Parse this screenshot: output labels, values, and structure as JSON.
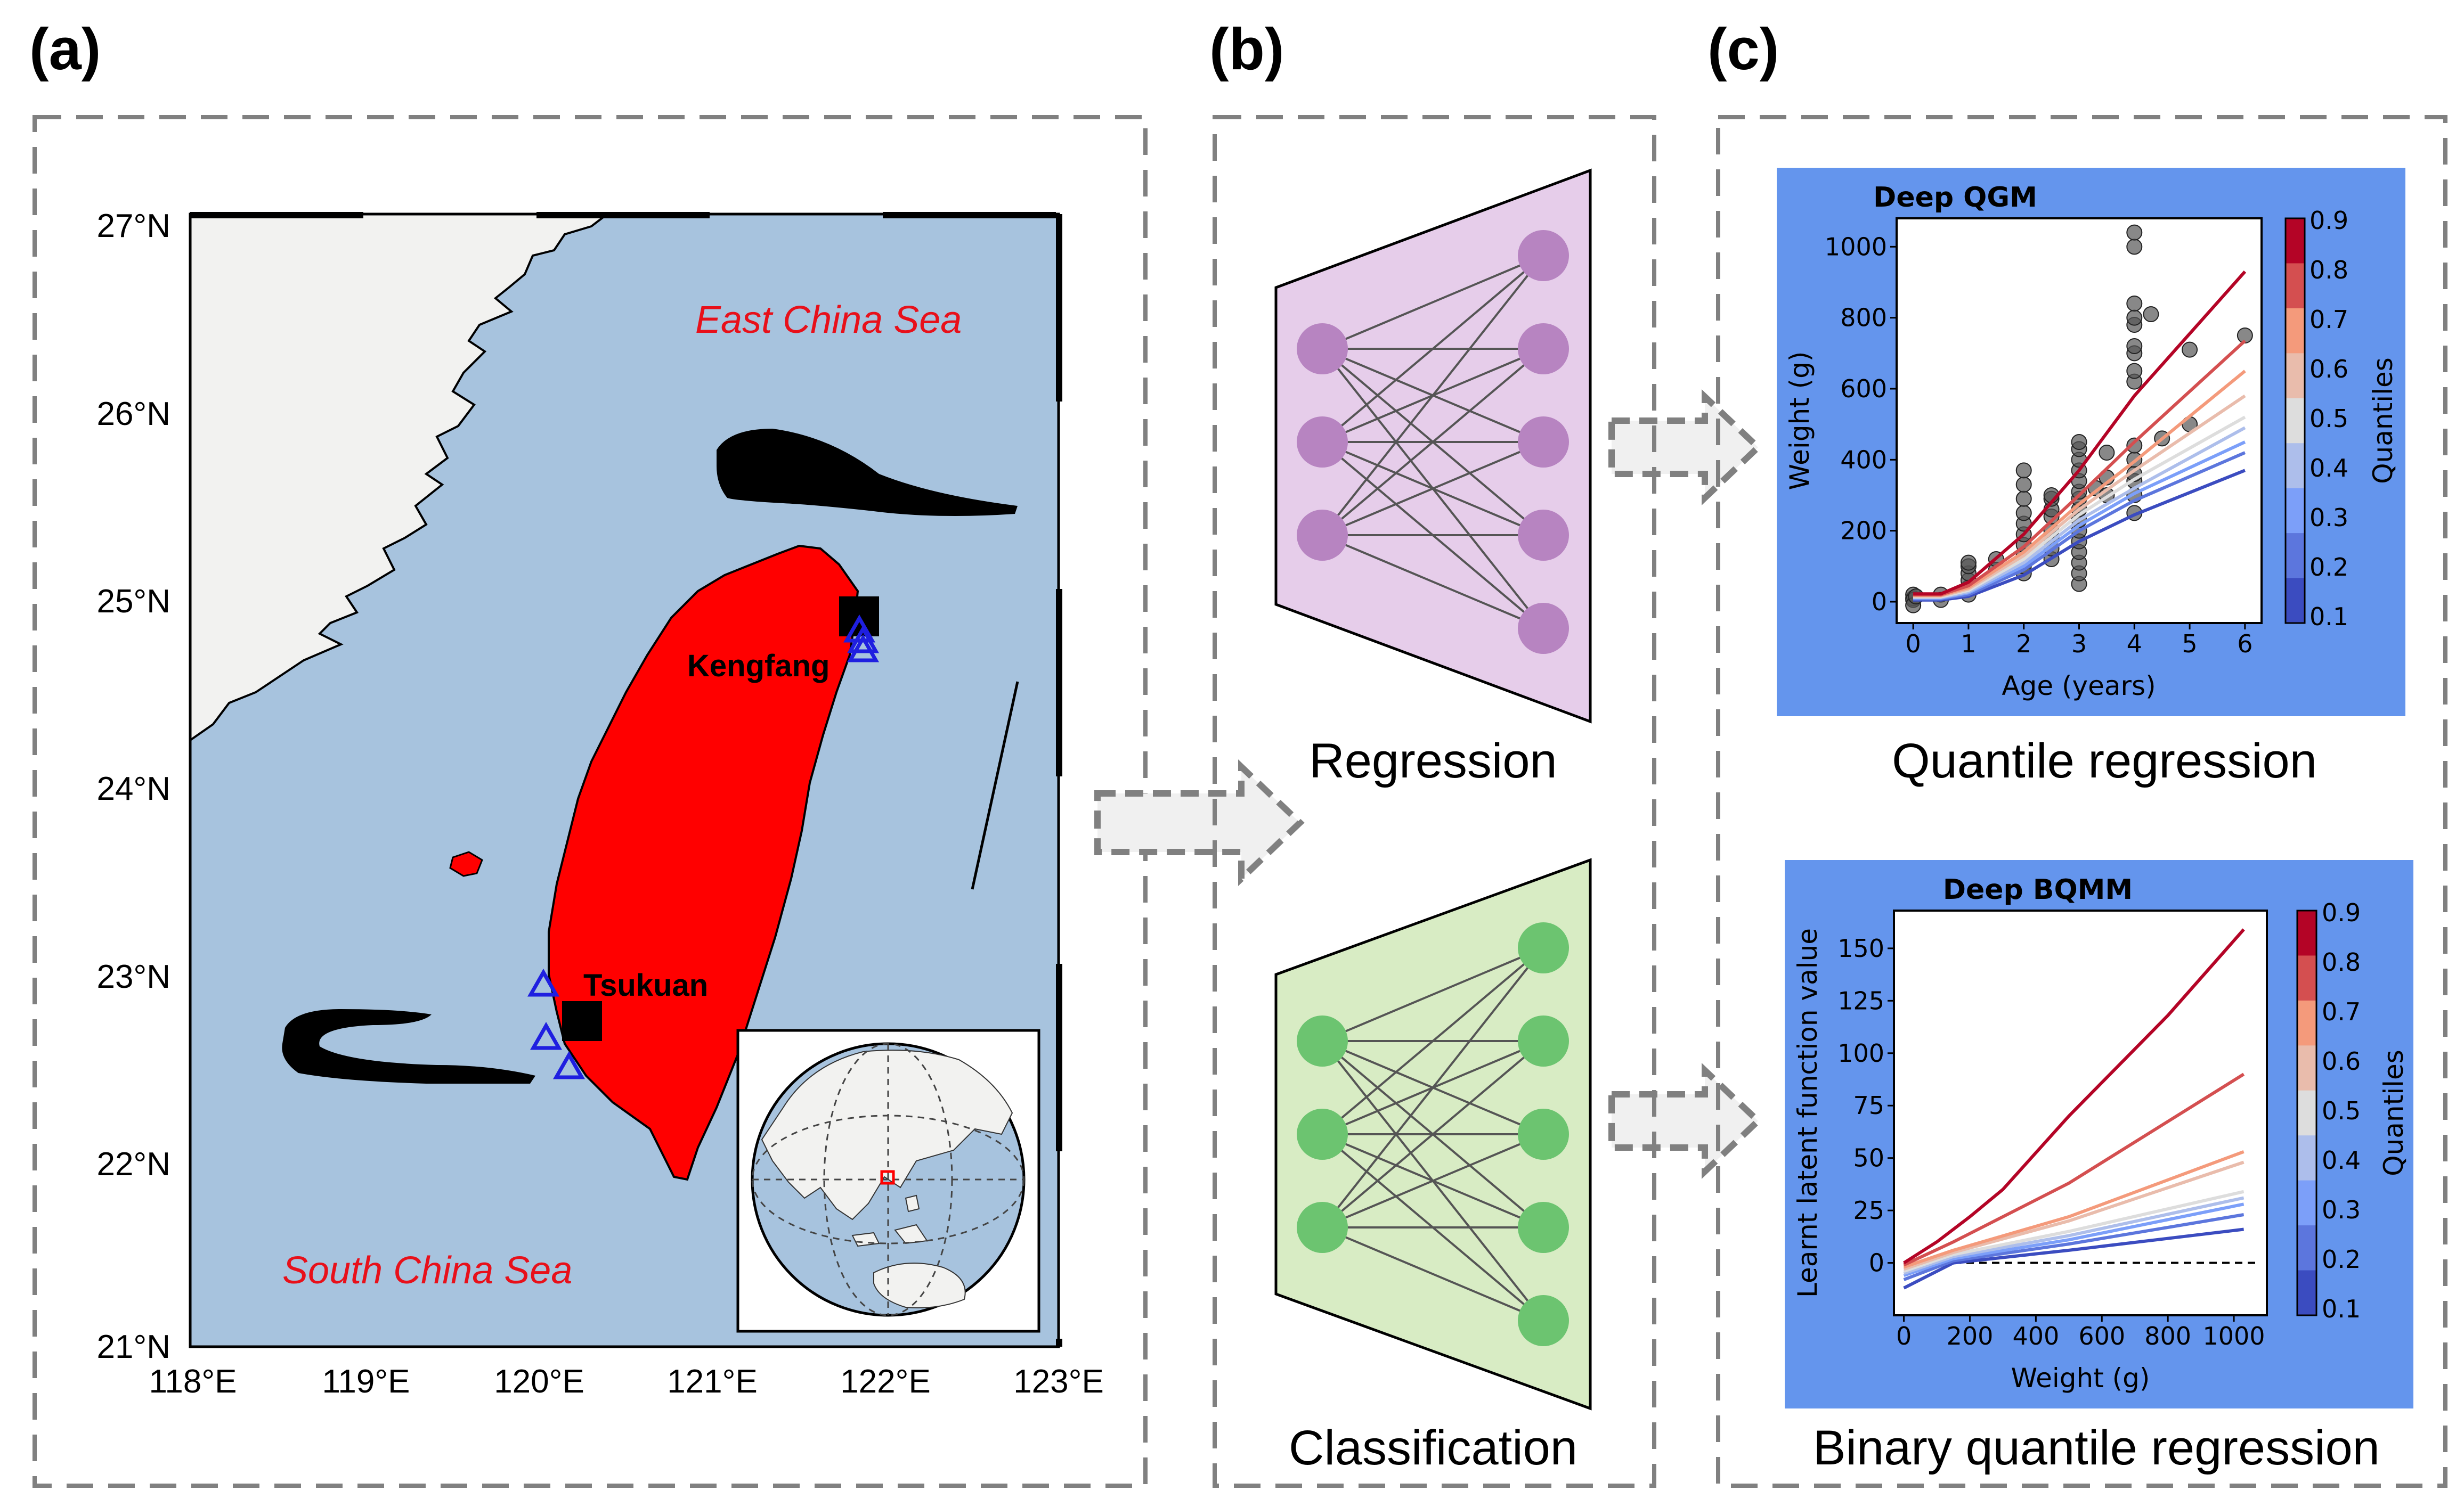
{
  "panels": {
    "a": {
      "label": "(a)",
      "lat_ticks": [
        "27°N",
        "26°N",
        "25°N",
        "24°N",
        "23°N",
        "22°N",
        "21°N"
      ],
      "lon_ticks": [
        "118°E",
        "119°E",
        "120°E",
        "121°E",
        "122°E",
        "123°E"
      ],
      "sea_labels": [
        "East China Sea",
        "South China Sea"
      ],
      "sites": [
        "Kengfang",
        "Tsukuan"
      ],
      "colors": {
        "ocean": "#a7c3de",
        "land": "#f2f2f0",
        "taiwan": "#ff0000",
        "fishing_ground": "#000000",
        "station": "#1f1fe0"
      }
    },
    "b": {
      "label": "(b)",
      "regression_caption": "Regression",
      "classification_caption": "Classification",
      "colors": {
        "regression_fill": "#e6cdea",
        "regression_node": "#b784c1",
        "classification_fill": "#d8ecc4",
        "classification_node": "#6cc470"
      }
    },
    "c": {
      "label": "(c)",
      "background_color": "#6495ed",
      "colorbar_label": "Quantiles",
      "colorbar_ticks": [
        "0.9",
        "0.8",
        "0.7",
        "0.6",
        "0.5",
        "0.4",
        "0.3",
        "0.2",
        "0.1"
      ],
      "top_caption": "Quantile regression",
      "bottom_caption": "Binary quantile regression"
    }
  },
  "chart_data": [
    {
      "type": "line",
      "title": "Deep QGM",
      "xlabel": "Age (years)",
      "ylabel": "Weight (g)",
      "x_ticks": [
        "0",
        "1",
        "2",
        "3",
        "4",
        "5",
        "6"
      ],
      "y_ticks": [
        "0",
        "200",
        "400",
        "600",
        "800",
        "1000"
      ],
      "xlim": [
        -0.3,
        6.3
      ],
      "ylim": [
        -60,
        1080
      ],
      "quantiles": [
        0.1,
        0.2,
        0.3,
        0.4,
        0.5,
        0.6,
        0.7,
        0.8,
        0.9
      ],
      "series": [
        {
          "quantile": 0.1,
          "points": [
            [
              0,
              5
            ],
            [
              0.5,
              5
            ],
            [
              1,
              15
            ],
            [
              2,
              75
            ],
            [
              3,
              170
            ],
            [
              4,
              245
            ],
            [
              6,
              370
            ]
          ]
        },
        {
          "quantile": 0.2,
          "points": [
            [
              0,
              8
            ],
            [
              0.5,
              8
            ],
            [
              1,
              20
            ],
            [
              2,
              90
            ],
            [
              3,
              200
            ],
            [
              4,
              285
            ],
            [
              6,
              420
            ]
          ]
        },
        {
          "quantile": 0.3,
          "points": [
            [
              0,
              10
            ],
            [
              0.5,
              10
            ],
            [
              1,
              25
            ],
            [
              2,
              100
            ],
            [
              3,
              215
            ],
            [
              4,
              305
            ],
            [
              6,
              450
            ]
          ]
        },
        {
          "quantile": 0.4,
          "points": [
            [
              0,
              12
            ],
            [
              0.5,
              12
            ],
            [
              1,
              28
            ],
            [
              2,
              110
            ],
            [
              3,
              230
            ],
            [
              4,
              320
            ],
            [
              6,
              490
            ]
          ]
        },
        {
          "quantile": 0.5,
          "points": [
            [
              0,
              14
            ],
            [
              0.5,
              14
            ],
            [
              1,
              32
            ],
            [
              2,
              120
            ],
            [
              3,
              245
            ],
            [
              4,
              345
            ],
            [
              6,
              520
            ]
          ]
        },
        {
          "quantile": 0.6,
          "points": [
            [
              0,
              16
            ],
            [
              0.5,
              16
            ],
            [
              1,
              36
            ],
            [
              2,
              130
            ],
            [
              3,
              260
            ],
            [
              4,
              370
            ],
            [
              6,
              580
            ]
          ]
        },
        {
          "quantile": 0.7,
          "points": [
            [
              0,
              18
            ],
            [
              0.5,
              18
            ],
            [
              1,
              40
            ],
            [
              2,
              140
            ],
            [
              3,
              275
            ],
            [
              4,
              395
            ],
            [
              6,
              650
            ]
          ]
        },
        {
          "quantile": 0.8,
          "points": [
            [
              0,
              20
            ],
            [
              0.5,
              20
            ],
            [
              1,
              45
            ],
            [
              2,
              155
            ],
            [
              3,
              300
            ],
            [
              4,
              450
            ],
            [
              6,
              735
            ]
          ]
        },
        {
          "quantile": 0.9,
          "points": [
            [
              0,
              22
            ],
            [
              0.5,
              22
            ],
            [
              1,
              55
            ],
            [
              2,
              190
            ],
            [
              3,
              370
            ],
            [
              4,
              580
            ],
            [
              6,
              930
            ]
          ]
        }
      ],
      "scatter": [
        [
          0,
          10
        ],
        [
          0,
          20
        ],
        [
          0,
          5
        ],
        [
          0,
          -10
        ],
        [
          0.05,
          15
        ],
        [
          0.5,
          20
        ],
        [
          0.5,
          5
        ],
        [
          1,
          20
        ],
        [
          1,
          40
        ],
        [
          1,
          60
        ],
        [
          1,
          80
        ],
        [
          1,
          100
        ],
        [
          1,
          110
        ],
        [
          1.5,
          90
        ],
        [
          1.5,
          120
        ],
        [
          2,
          80
        ],
        [
          2,
          100
        ],
        [
          2,
          130
        ],
        [
          2,
          160
        ],
        [
          2,
          190
        ],
        [
          2,
          220
        ],
        [
          2,
          250
        ],
        [
          2,
          290
        ],
        [
          2,
          330
        ],
        [
          2,
          370
        ],
        [
          2.5,
          120
        ],
        [
          2.5,
          150
        ],
        [
          2.5,
          180
        ],
        [
          2.5,
          200
        ],
        [
          2.5,
          240
        ],
        [
          2.5,
          260
        ],
        [
          2.5,
          290
        ],
        [
          2.5,
          300
        ],
        [
          3,
          50
        ],
        [
          3,
          80
        ],
        [
          3,
          110
        ],
        [
          3,
          140
        ],
        [
          3,
          170
        ],
        [
          3,
          200
        ],
        [
          3,
          230
        ],
        [
          3,
          260
        ],
        [
          3,
          290
        ],
        [
          3,
          310
        ],
        [
          3,
          340
        ],
        [
          3,
          370
        ],
        [
          3,
          400
        ],
        [
          3,
          430
        ],
        [
          3,
          450
        ],
        [
          3.3,
          320
        ],
        [
          3.5,
          300
        ],
        [
          3.5,
          350
        ],
        [
          3.5,
          420
        ],
        [
          4,
          250
        ],
        [
          4,
          300
        ],
        [
          4,
          340
        ],
        [
          4,
          360
        ],
        [
          4,
          400
        ],
        [
          4,
          440
        ],
        [
          4,
          620
        ],
        [
          4,
          650
        ],
        [
          4,
          700
        ],
        [
          4,
          720
        ],
        [
          4,
          780
        ],
        [
          4,
          800
        ],
        [
          4,
          840
        ],
        [
          4,
          1000
        ],
        [
          4,
          1040
        ],
        [
          4.3,
          810
        ],
        [
          4.5,
          460
        ],
        [
          5,
          500
        ],
        [
          5,
          710
        ],
        [
          6,
          750
        ]
      ]
    },
    {
      "type": "line",
      "title": "Deep BQMM",
      "xlabel": "Weight (g)",
      "ylabel": "Learnt latent function value",
      "x_ticks": [
        "0",
        "200",
        "400",
        "600",
        "800",
        "1000"
      ],
      "y_ticks": [
        "0",
        "25",
        "50",
        "75",
        "100",
        "125",
        "150"
      ],
      "xlim": [
        -30,
        1100
      ],
      "ylim": [
        -25,
        168
      ],
      "reference_line_y": 0,
      "quantiles": [
        0.1,
        0.2,
        0.3,
        0.4,
        0.5,
        0.6,
        0.7,
        0.8,
        0.9
      ],
      "series": [
        {
          "quantile": 0.1,
          "points": [
            [
              0,
              -12
            ],
            [
              150,
              0
            ],
            [
              500,
              6
            ],
            [
              1030,
              16
            ]
          ]
        },
        {
          "quantile": 0.2,
          "points": [
            [
              0,
              -8
            ],
            [
              150,
              1
            ],
            [
              500,
              9
            ],
            [
              1030,
              23
            ]
          ]
        },
        {
          "quantile": 0.3,
          "points": [
            [
              0,
              -6
            ],
            [
              150,
              2
            ],
            [
              500,
              11
            ],
            [
              1030,
              28
            ]
          ]
        },
        {
          "quantile": 0.4,
          "points": [
            [
              0,
              -5
            ],
            [
              150,
              3
            ],
            [
              500,
              13
            ],
            [
              1030,
              31
            ]
          ]
        },
        {
          "quantile": 0.5,
          "points": [
            [
              0,
              -4
            ],
            [
              150,
              4
            ],
            [
              500,
              15
            ],
            [
              1030,
              34
            ]
          ]
        },
        {
          "quantile": 0.6,
          "points": [
            [
              0,
              -3
            ],
            [
              150,
              5
            ],
            [
              500,
              20
            ],
            [
              1030,
              48
            ]
          ]
        },
        {
          "quantile": 0.7,
          "points": [
            [
              0,
              -2
            ],
            [
              150,
              6
            ],
            [
              500,
              22
            ],
            [
              1030,
              53
            ]
          ]
        },
        {
          "quantile": 0.8,
          "points": [
            [
              0,
              -1
            ],
            [
              150,
              10
            ],
            [
              500,
              38
            ],
            [
              1030,
              90
            ]
          ]
        },
        {
          "quantile": 0.9,
          "points": [
            [
              0,
              0
            ],
            [
              100,
              10
            ],
            [
              200,
              22
            ],
            [
              300,
              35
            ],
            [
              500,
              70
            ],
            [
              800,
              118
            ],
            [
              1030,
              159
            ]
          ]
        }
      ]
    }
  ]
}
